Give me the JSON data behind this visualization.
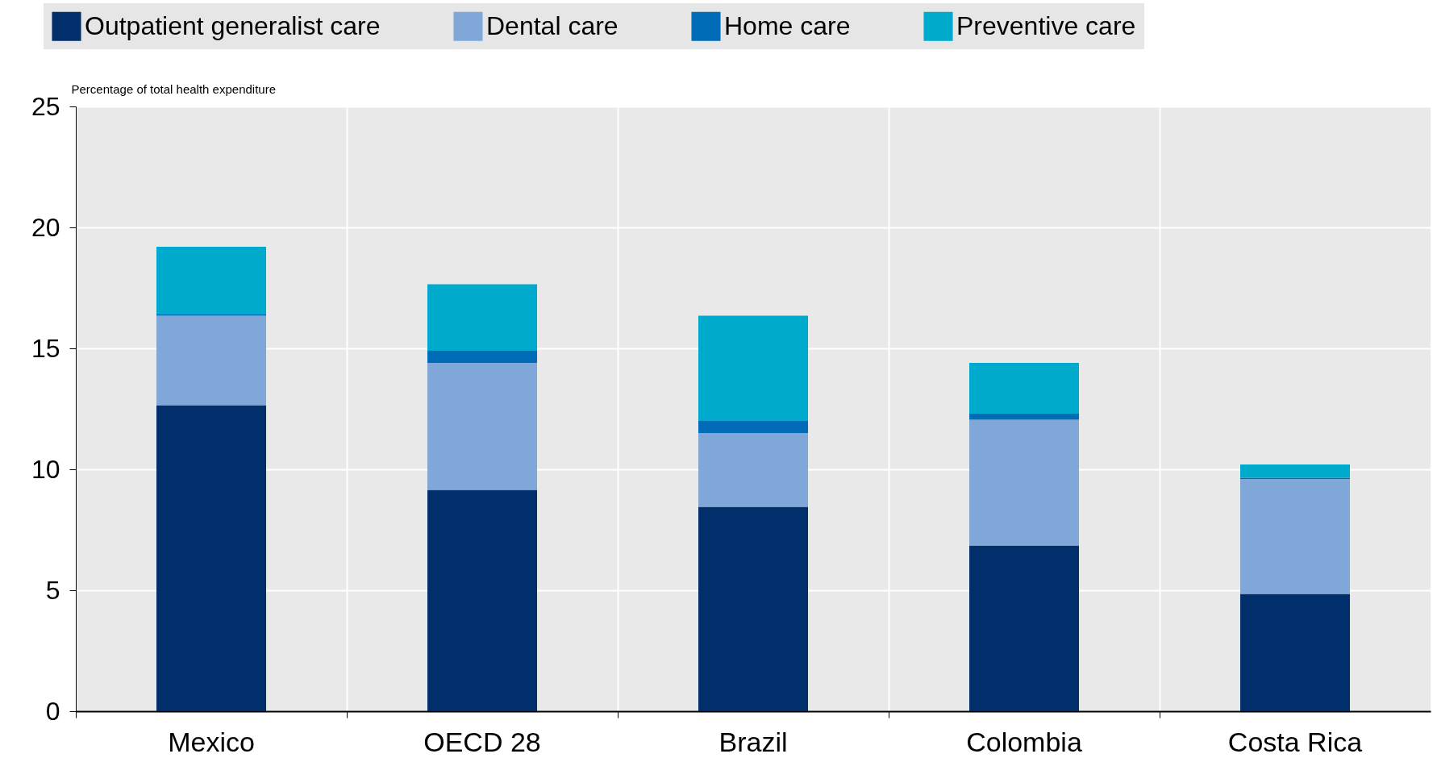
{
  "chart_data": {
    "type": "bar",
    "stacked": true,
    "ylabel": "Percentage of total health expenditure",
    "categories": [
      "Mexico",
      "OECD 28",
      "Brazil",
      "Colombia",
      "Costa Rica"
    ],
    "series": [
      {
        "name": "Outpatient generalist care",
        "color": "#002f6c",
        "values": [
          12.65,
          9.15,
          8.45,
          6.85,
          4.85
        ]
      },
      {
        "name": "Dental care",
        "color": "#7fa8d9",
        "values": [
          3.7,
          5.25,
          3.05,
          5.2,
          4.75
        ]
      },
      {
        "name": "Home care",
        "color": "#006bb6",
        "values": [
          0.05,
          0.5,
          0.5,
          0.25,
          0.05
        ]
      },
      {
        "name": "Preventive care",
        "color": "#00aacc",
        "values": [
          2.8,
          2.75,
          4.35,
          2.1,
          0.55
        ]
      }
    ],
    "ylim": [
      0,
      25
    ],
    "yticks": [
      0,
      5,
      10,
      15,
      20,
      25
    ],
    "grid": true,
    "legend": "top"
  }
}
